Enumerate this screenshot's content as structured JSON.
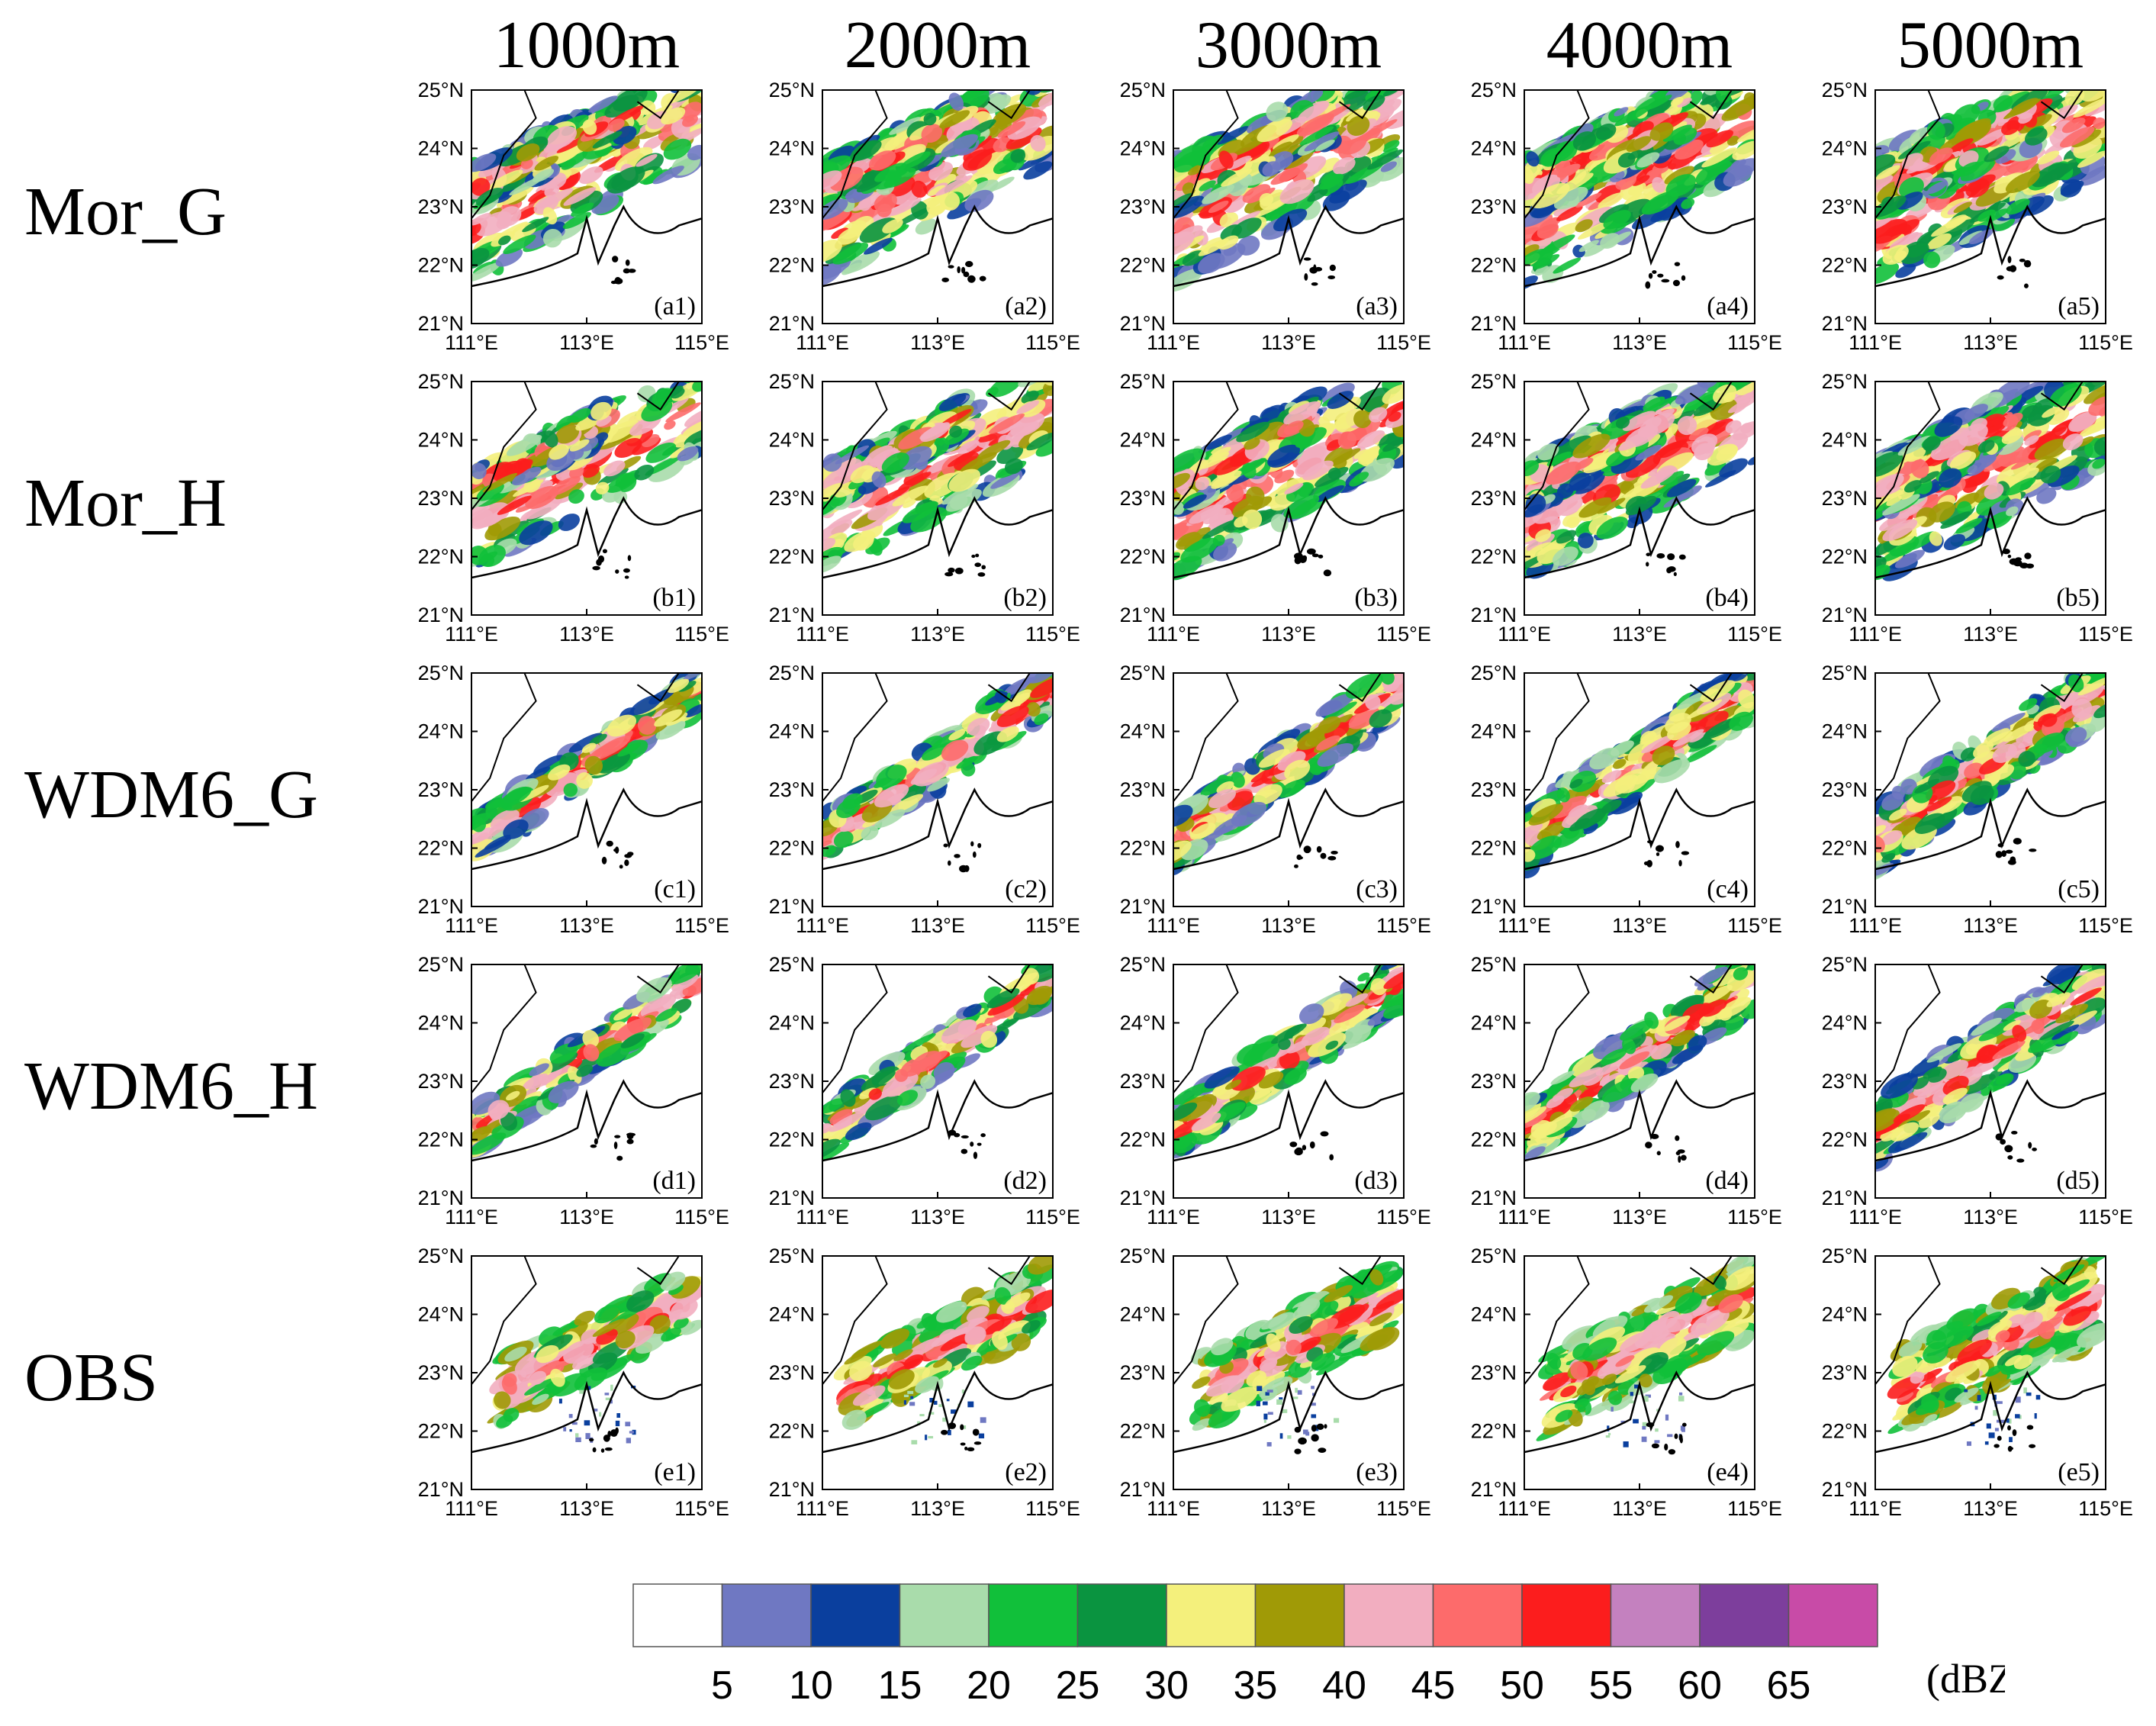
{
  "columns": [
    "1000m",
    "2000m",
    "3000m",
    "4000m",
    "5000m"
  ],
  "rows": [
    {
      "name": "Mor_G",
      "panels": [
        "(a1)",
        "(a2)",
        "(a3)",
        "(a4)",
        "(a5)"
      ]
    },
    {
      "name": "Mor_H",
      "panels": [
        "(b1)",
        "(b2)",
        "(b3)",
        "(b4)",
        "(b5)"
      ]
    },
    {
      "name": "WDM6_G",
      "panels": [
        "(c1)",
        "(c2)",
        "(c3)",
        "(c4)",
        "(c5)"
      ]
    },
    {
      "name": "WDM6_H",
      "panels": [
        "(d1)",
        "(d2)",
        "(d3)",
        "(d4)",
        "(d5)"
      ]
    },
    {
      "name": "OBS",
      "panels": [
        "(e1)",
        "(e2)",
        "(e3)",
        "(e4)",
        "(e5)"
      ]
    }
  ],
  "map": {
    "lon_ticks": [
      "111°E",
      "113°E",
      "115°E"
    ],
    "lat_ticks": [
      "25°N",
      "24°N",
      "23°N",
      "22°N",
      "21°N"
    ],
    "lon_range": [
      111,
      115
    ],
    "lat_range": [
      21,
      25
    ]
  },
  "colorbar": {
    "unit": "(dBZ)",
    "labels": [
      "5",
      "10",
      "15",
      "20",
      "25",
      "30",
      "35",
      "40",
      "45",
      "50",
      "55",
      "60",
      "65"
    ],
    "colors": [
      "#ffffff",
      "#6f78c2",
      "#0a3f9e",
      "#a9dcab",
      "#11c03a",
      "#0a9440",
      "#f4f07c",
      "#a09a06",
      "#f2aec0",
      "#fd6b6b",
      "#fc1d1d",
      "#c481bf",
      "#7d3e9c",
      "#c84ba7"
    ]
  }
}
